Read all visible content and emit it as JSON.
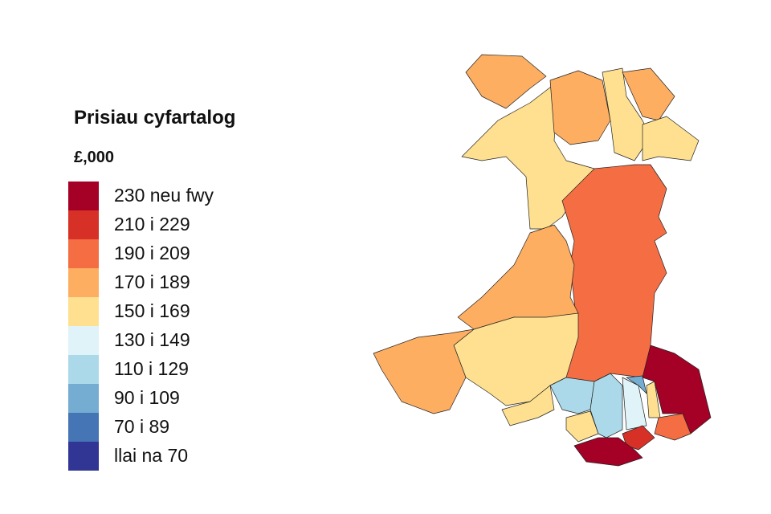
{
  "legend": {
    "title": "Prisiau cyfartalog",
    "subtitle": "£,000",
    "items": [
      {
        "label": "230 neu fwy",
        "color": "#a50026"
      },
      {
        "label": "210 i 229",
        "color": "#d73027"
      },
      {
        "label": "190 i 209",
        "color": "#f46d43"
      },
      {
        "label": "170 i 189",
        "color": "#fdae61"
      },
      {
        "label": "150 i 169",
        "color": "#fee090"
      },
      {
        "label": "130 i 149",
        "color": "#e0f3f8"
      },
      {
        "label": "110 i 129",
        "color": "#abd9e9"
      },
      {
        "label": "90 i 109",
        "color": "#74add1"
      },
      {
        "label": "70 i 89",
        "color": "#4575b4"
      },
      {
        "label": "llai na 70",
        "color": "#313695"
      }
    ]
  }
}
